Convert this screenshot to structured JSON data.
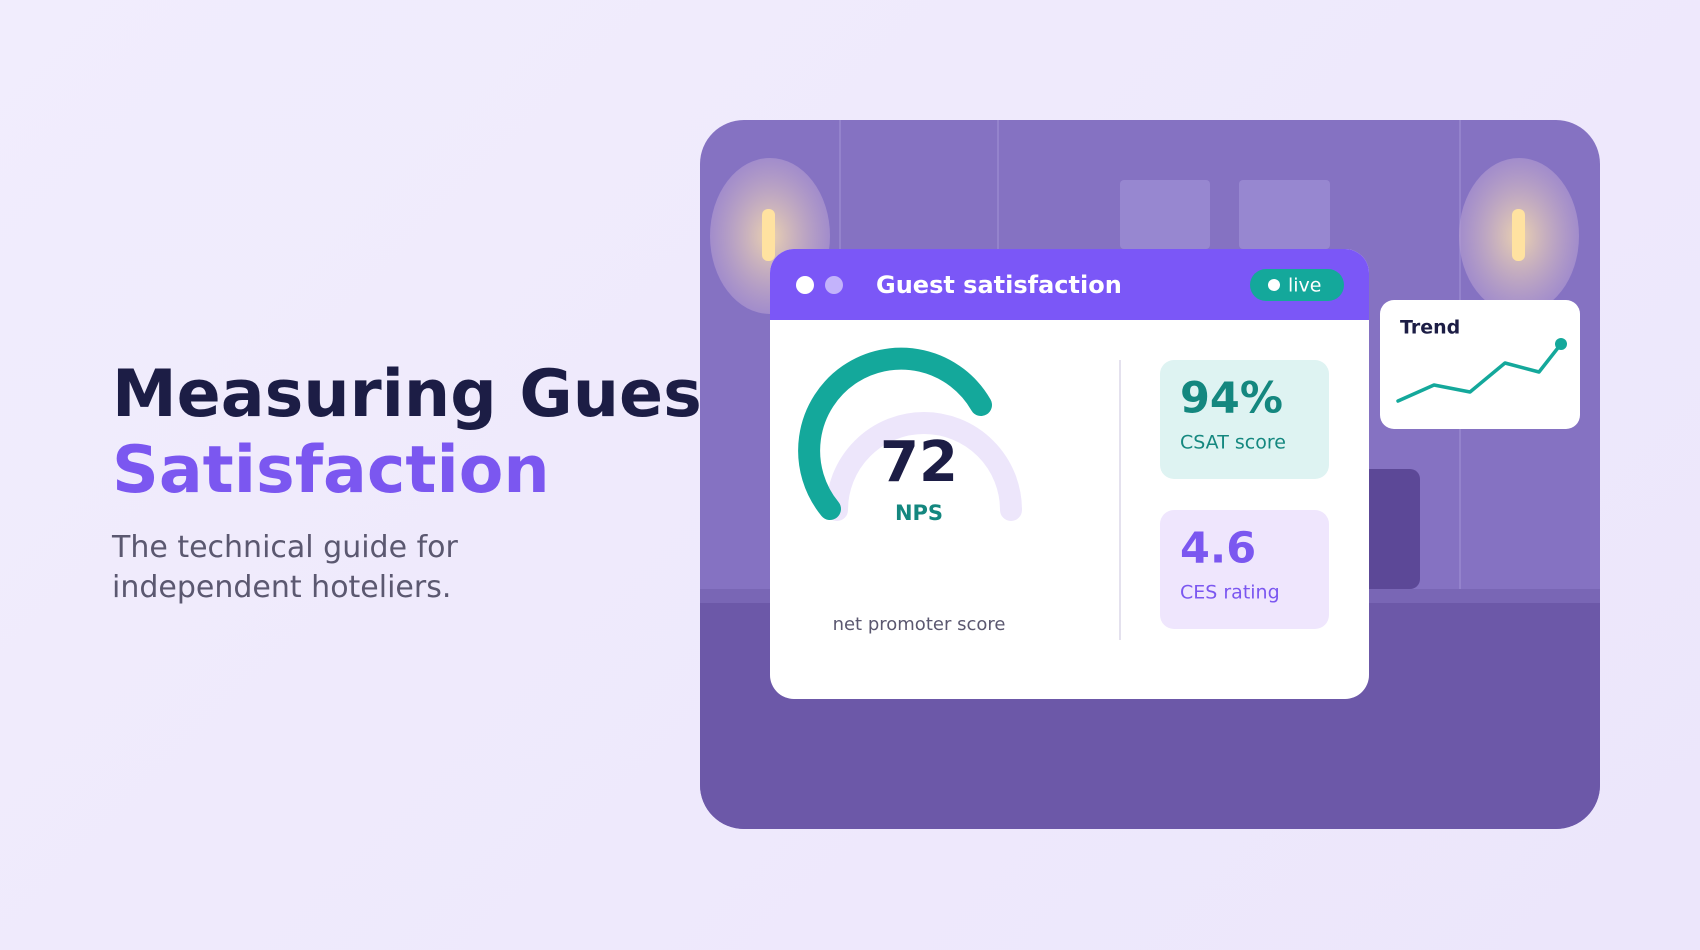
{
  "hero": {
    "title_line1": "Measuring Guest",
    "title_line2": "Satisfaction",
    "subtitle": "The technical guide for independent hoteliers."
  },
  "card": {
    "title": "Guest satisfaction",
    "badge": "live",
    "gauge": {
      "value": "72",
      "label": "NPS",
      "caption": "net promoter score"
    },
    "stats": [
      {
        "value": "94%",
        "label": "CSAT score"
      },
      {
        "value": "4.6",
        "label": "CES rating"
      }
    ]
  },
  "trend": {
    "title": "Trend"
  }
}
